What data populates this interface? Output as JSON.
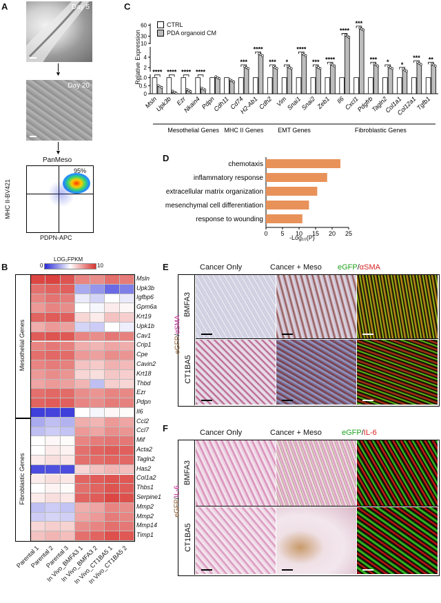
{
  "panels": {
    "A": {
      "label": "A",
      "day5": "Day 5",
      "day20": "Day 20",
      "panmeso": "PanMeso",
      "percent": "95%",
      "y_axis": "MHC II-BV421",
      "x_axis": "PDPN-APC"
    },
    "B": {
      "label": "B",
      "colorbar_title": "LOG₂FPKM",
      "colorbar_min": "0",
      "colorbar_max": "10",
      "group_meso": "Mesothelial Genes",
      "group_fibro": "Fibroblastic Genes",
      "genes": [
        "Msln",
        "Upk3b",
        "Igfbp6",
        "Gpm6a",
        "Krt19",
        "Upk1b",
        "Cav1",
        "Crip1",
        "Cpe",
        "Cavin2",
        "Krt18",
        "Thbd",
        "Ezr",
        "Pdpn",
        "Il6",
        "Ccl2",
        "Ccl7",
        "Mif",
        "Acta2",
        "Tagln2",
        "Has2",
        "Col1a2",
        "Thbs1",
        "Serpine1",
        "Mmp2",
        "Mmp2",
        "Mmp14",
        "Timp1"
      ],
      "samples": [
        "Parental 1",
        "Parental 2",
        "Parental 3",
        "In Vivo_BMFA3 1",
        "In Vivo_BMFA3 2",
        "In Vivo_CT1BA5 1",
        "In Vivo_CT1BA5 2"
      ],
      "values": [
        [
          9.5,
          9.6,
          9.2,
          8.0,
          7.8,
          8.5,
          8.2
        ],
        [
          8.5,
          8.8,
          8.9,
          3.0,
          2.5,
          1.5,
          2.0
        ],
        [
          8.0,
          8.4,
          8.2,
          4.5,
          4.0,
          5.0,
          4.5
        ],
        [
          7.5,
          8.0,
          7.8,
          5.0,
          4.8,
          5.5,
          5.2
        ],
        [
          8.8,
          9.0,
          8.9,
          6.0,
          5.5,
          6.5,
          6.2
        ],
        [
          7.0,
          7.5,
          7.3,
          4.0,
          3.8,
          5.0,
          4.6
        ],
        [
          9.0,
          9.2,
          9.1,
          8.0,
          7.8,
          8.3,
          8.1
        ],
        [
          8.0,
          8.3,
          8.1,
          7.0,
          6.8,
          7.2,
          7.0
        ],
        [
          8.5,
          8.7,
          8.6,
          7.5,
          7.3,
          7.8,
          7.6
        ],
        [
          8.0,
          8.2,
          8.1,
          6.5,
          6.3,
          6.9,
          6.7
        ],
        [
          7.5,
          7.8,
          7.6,
          6.0,
          5.8,
          6.4,
          6.2
        ],
        [
          7.2,
          7.5,
          7.3,
          6.8,
          3.5,
          6.2,
          6.0
        ],
        [
          8.5,
          8.7,
          8.6,
          7.8,
          7.6,
          8.0,
          7.9
        ],
        [
          8.8,
          9.0,
          8.9,
          8.0,
          7.8,
          8.2,
          8.1
        ],
        [
          0.5,
          0.6,
          0.5,
          5.0,
          4.8,
          5.2,
          5.1
        ],
        [
          3.0,
          3.5,
          3.2,
          7.0,
          6.8,
          7.5,
          7.2
        ],
        [
          3.5,
          3.8,
          3.6,
          7.5,
          7.2,
          7.8,
          7.6
        ],
        [
          5.0,
          5.2,
          5.1,
          8.0,
          8.2,
          8.4,
          8.3
        ],
        [
          5.0,
          5.5,
          5.3,
          8.5,
          8.8,
          9.0,
          8.9
        ],
        [
          5.5,
          5.8,
          5.6,
          8.5,
          8.6,
          8.8,
          8.7
        ],
        [
          0.8,
          0.9,
          0.8,
          6.0,
          6.5,
          6.8,
          6.6
        ],
        [
          5.5,
          5.8,
          5.6,
          8.8,
          9.0,
          9.2,
          9.1
        ],
        [
          5.0,
          5.3,
          5.1,
          8.5,
          8.8,
          9.2,
          9.0
        ],
        [
          5.5,
          5.8,
          5.6,
          8.8,
          9.0,
          9.5,
          9.3
        ],
        [
          3.5,
          3.8,
          3.6,
          7.0,
          7.2,
          8.0,
          7.8
        ],
        [
          3.8,
          4.0,
          3.9,
          7.2,
          7.5,
          8.2,
          8.0
        ],
        [
          6.0,
          6.2,
          6.1,
          7.8,
          8.0,
          8.5,
          8.3
        ],
        [
          6.5,
          6.8,
          6.6,
          8.5,
          8.8,
          9.3,
          9.1
        ]
      ]
    },
    "C": {
      "label": "C",
      "ylabel": "Relative Expression",
      "legend_ctrl": "CTRL",
      "legend_cm": "PDA organoid CM",
      "group_meso": "Mesothelial Genes",
      "group_mhc": "MHC II Genes",
      "group_emt": "EMT Genes",
      "group_fibro": "Fibroblastic Genes",
      "yticks_low": [
        "0",
        "0.5",
        "1.0"
      ],
      "yticks_mid": [
        "2",
        "4"
      ],
      "yticks_high": [
        "10",
        "30",
        "60"
      ]
    },
    "D": {
      "label": "D",
      "xlabel": "-Log₁₀(P)",
      "xticks": [
        "0",
        "5",
        "10",
        "15",
        "20",
        "25"
      ]
    },
    "E": {
      "label": "E",
      "col1": "Cancer Only",
      "col2": "Cancer + Meso",
      "col3_a": "eGFP",
      "col3_sep": "/",
      "col3_b": "αSMA",
      "row1": "BMFA3",
      "row2": "CT1BA5",
      "side_a": "eGFP",
      "side_sep": "/",
      "side_b": "αSMA"
    },
    "F": {
      "label": "F",
      "col1": "Cancer Only",
      "col2": "Cancer + Meso",
      "col3_a": "eGFP",
      "col3_sep": "/",
      "col3_b": "IL-6",
      "row1": "BMFA3",
      "row2": "CT1BA5",
      "side_a": "eGFP",
      "side_sep": "/",
      "side_b": "IL-6"
    }
  },
  "chart_data": [
    {
      "type": "bar",
      "panel": "C",
      "categories": [
        "Msln",
        "Upk3b",
        "Ezr",
        "Nkain4",
        "Pdpn",
        "Cdh11",
        "Cd74",
        "H2-Ab1",
        "Cdh2",
        "Vim",
        "Snai1",
        "Snai2",
        "Zeb1",
        "Il6",
        "Cxcl1",
        "Pdgfrb",
        "Tagln2",
        "Col1a1",
        "Col12a1",
        "Tgfb1"
      ],
      "series": [
        {
          "name": "CTRL",
          "values": [
            1,
            1,
            1,
            1,
            1,
            1,
            1,
            1,
            1,
            1,
            1,
            1,
            1,
            1,
            1,
            1,
            1,
            1,
            1,
            1
          ]
        },
        {
          "name": "PDA organoid CM",
          "values": [
            0.45,
            0.1,
            0.2,
            0.3,
            1.0,
            0.8,
            2.0,
            4.5,
            2.0,
            2.0,
            4.5,
            2.0,
            2.5,
            30,
            50,
            2.5,
            2.0,
            1.5,
            2.8,
            2.5
          ]
        }
      ],
      "significance": [
        "****",
        "****",
        "****",
        "****",
        "",
        "",
        "***",
        "****",
        "***",
        "*",
        "****",
        "***",
        "****",
        "****",
        "***",
        "***",
        "*",
        "*",
        "***",
        "**"
      ],
      "ylabel": "Relative Expression"
    },
    {
      "type": "bar",
      "panel": "D",
      "orientation": "horizontal",
      "categories": [
        "chemotaxis",
        "inflammatory response",
        "extracellular matrix organization",
        "mesenchymal cell differentiation",
        "response to wounding"
      ],
      "values": [
        22.5,
        18.5,
        15.5,
        13,
        11
      ],
      "xlabel": "-Log₁₀(P)",
      "xlim": [
        0,
        25
      ]
    }
  ],
  "colors": {
    "bar_cm": "#bdbdbd",
    "bar_ctrl": "#ffffff",
    "go_bar": "#e8925a",
    "heat_low": "#2a2ad8",
    "heat_mid": "#ffffff",
    "heat_high": "#d8332f"
  }
}
